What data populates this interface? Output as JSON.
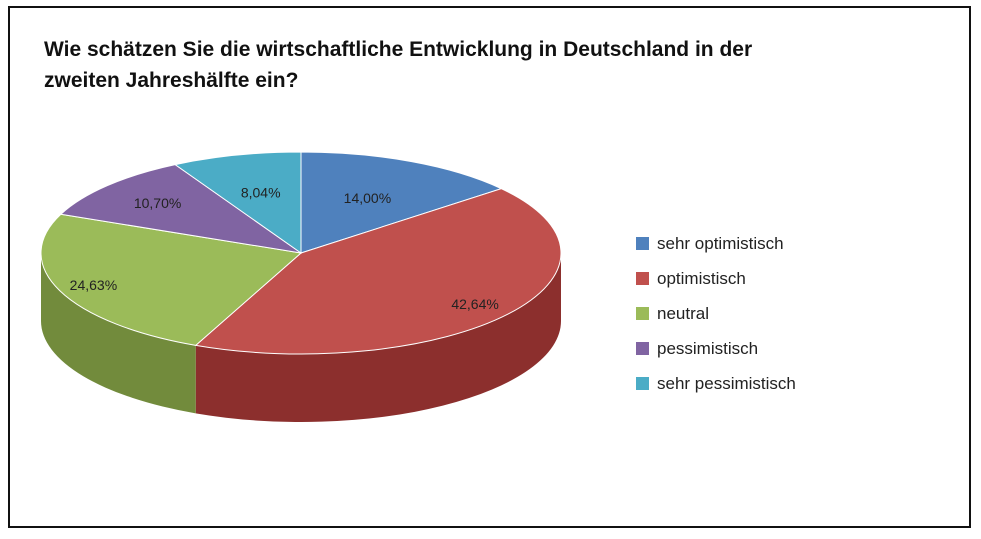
{
  "chart_data": {
    "type": "pie",
    "title": "Wie schätzen Sie die wirtschaftliche Entwicklung in Deutschland in der zweiten Jahreshälfte ein?",
    "three_d": true,
    "legend_position": "right",
    "slices": [
      {
        "category": "sehr optimistisch",
        "value": 14.0,
        "label": "14,00%",
        "color": "#4f81bd",
        "side_color": "#3a6190"
      },
      {
        "category": "optimistisch",
        "value": 42.64,
        "label": "42,64%",
        "color": "#c0504d",
        "side_color": "#8c2f2d"
      },
      {
        "category": "neutral",
        "value": 24.63,
        "label": "24,63%",
        "color": "#9bbb59",
        "side_color": "#728b3c"
      },
      {
        "category": "pessimistisch",
        "value": 10.7,
        "label": "10,70%",
        "color": "#8064a2",
        "side_color": "#5d4879"
      },
      {
        "category": "sehr pessimistisch",
        "value": 8.04,
        "label": "8,04%",
        "color": "#4bacc6",
        "side_color": "#347f93"
      }
    ]
  }
}
